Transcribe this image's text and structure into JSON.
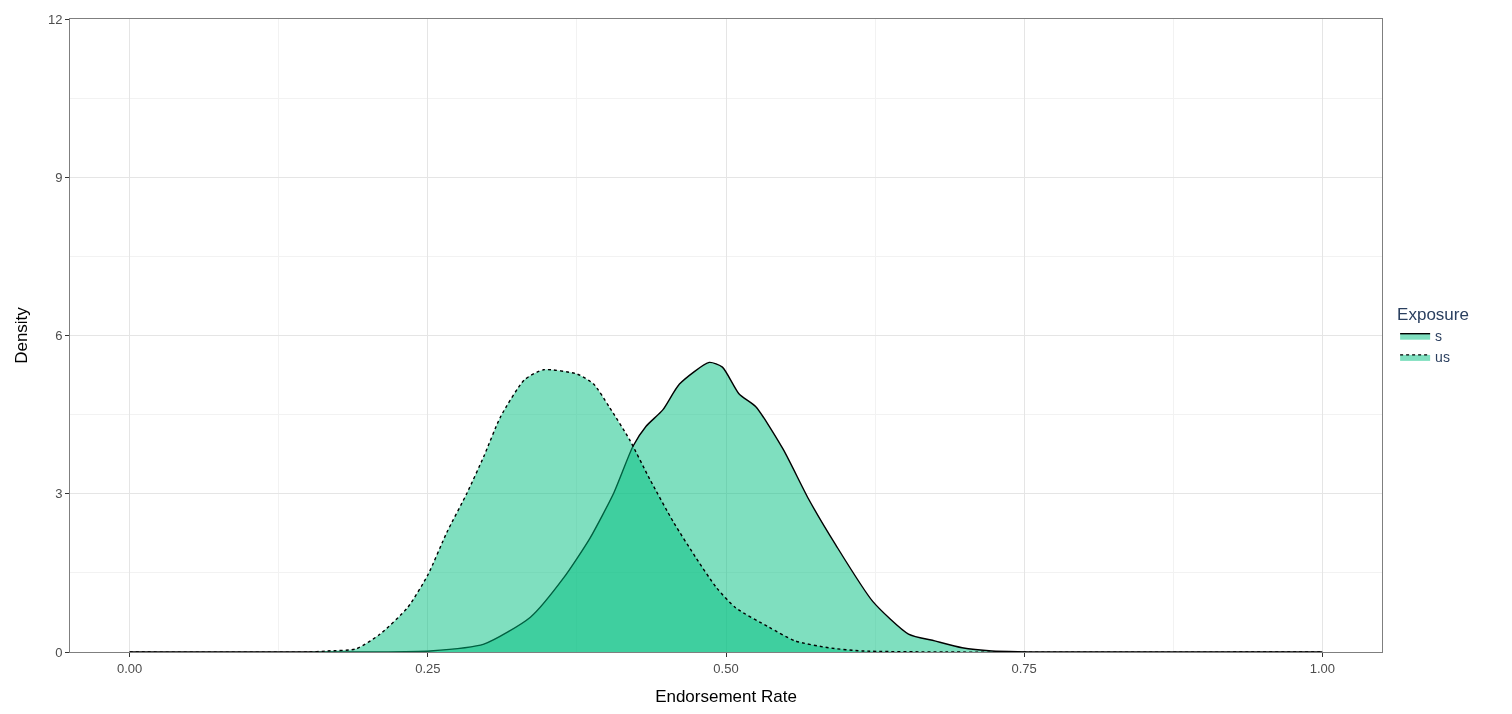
{
  "chart_data": {
    "type": "area",
    "xlabel": "Endorsement Rate",
    "ylabel": "Density",
    "legend_title": "Exposure",
    "legend": "right",
    "grid": true,
    "marker": "none",
    "xlim": [
      -0.05,
      1.05
    ],
    "xticks": [
      {
        "value": 0,
        "label": "0.00"
      },
      {
        "value": 0.25,
        "label": "0.25"
      },
      {
        "value": 0.5,
        "label": "0.50"
      },
      {
        "value": 0.75,
        "label": "0.75"
      },
      {
        "value": 1,
        "label": "1.00"
      }
    ],
    "ylim": [
      0,
      12
    ],
    "yticks": [
      0,
      3,
      6,
      9,
      12
    ],
    "series": [
      {
        "name": "s",
        "color": "#00bf7f",
        "line_style": "solid",
        "x": [
          0,
          0.2,
          0.252,
          0.297,
          0.336,
          0.364,
          0.386,
          0.406,
          0.422,
          0.433,
          0.447,
          0.461,
          0.486,
          0.497,
          0.511,
          0.525,
          0.548,
          0.569,
          0.592,
          0.623,
          0.653,
          0.675,
          0.698,
          0.723,
          0.767,
          1
        ],
        "values": [
          0,
          0,
          0.02,
          0.15,
          0.66,
          1.41,
          2.16,
          3.02,
          3.9,
          4.28,
          4.59,
          5.08,
          5.49,
          5.4,
          4.89,
          4.65,
          3.84,
          2.91,
          2.03,
          0.96,
          0.34,
          0.21,
          0.08,
          0.02,
          0,
          0
        ]
      },
      {
        "name": "us",
        "color": "#00bf7f",
        "line_style": "dotted",
        "x": [
          0,
          0.15,
          0.166,
          0.19,
          0.21,
          0.233,
          0.25,
          0.266,
          0.283,
          0.297,
          0.311,
          0.331,
          0.347,
          0.375,
          0.389,
          0.402,
          0.419,
          0.436,
          0.456,
          0.475,
          0.492,
          0.508,
          0.536,
          0.558,
          0.586,
          0.614,
          0.684,
          1
        ],
        "values": [
          0,
          0,
          0.02,
          0.06,
          0.34,
          0.84,
          1.46,
          2.27,
          3.02,
          3.71,
          4.46,
          5.16,
          5.35,
          5.27,
          5.08,
          4.65,
          4.03,
          3.28,
          2.46,
          1.78,
          1.22,
          0.84,
          0.47,
          0.21,
          0.08,
          0.02,
          0,
          0
        ]
      }
    ]
  }
}
